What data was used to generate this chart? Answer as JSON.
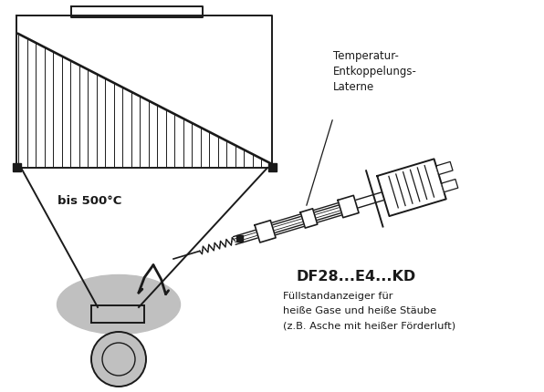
{
  "bg_color": "#ffffff",
  "line_color": "#1a1a1a",
  "gray_fill": "#c0c0c0",
  "label_temp": "Temperatur-\nEntkoppelungs-\nLaterne",
  "label_bis": "bis 500°C",
  "label_model": "DF28...E4...KD",
  "label_desc_line1": "Füllstandanzeiger für",
  "label_desc_line2": "heiße Gase und heiße Stäube",
  "label_desc_line3": "(z.B. Asche mit heißer Förderluft)",
  "figsize": [
    5.96,
    4.31
  ],
  "dpi": 100
}
